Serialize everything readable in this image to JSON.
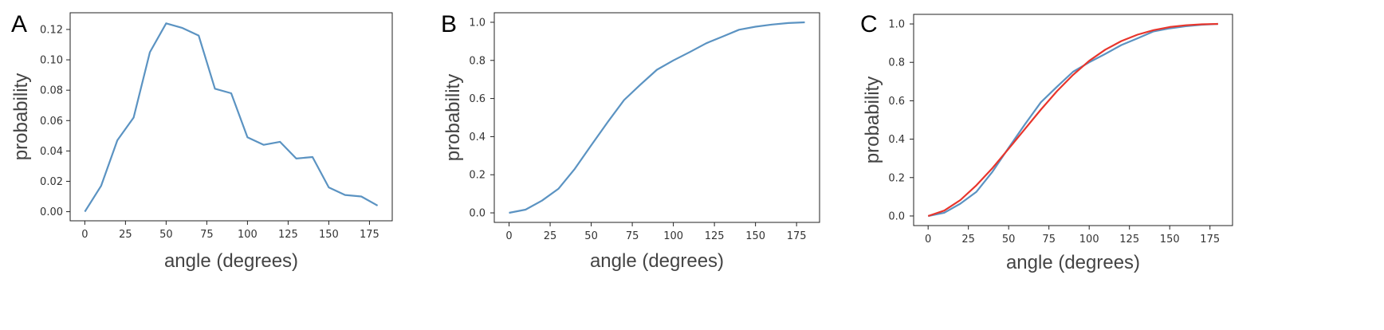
{
  "chart_data": [
    {
      "type": "line",
      "panel_label": "A",
      "xlabel": "angle (degrees)",
      "ylabel": "probability",
      "xlim": [
        -9,
        189
      ],
      "ylim": [
        -0.006,
        0.131
      ],
      "xticks": [
        0,
        25,
        50,
        75,
        100,
        125,
        150,
        175
      ],
      "yticks": [
        0.0,
        0.02,
        0.04,
        0.06,
        0.08,
        0.1,
        0.12
      ],
      "ytick_labels": [
        "0.00",
        "0.02",
        "0.04",
        "0.06",
        "0.08",
        "0.10",
        "0.12"
      ],
      "x": [
        0,
        10,
        20,
        30,
        40,
        50,
        60,
        70,
        80,
        90,
        100,
        110,
        120,
        130,
        140,
        150,
        160,
        170,
        180
      ],
      "series": [
        {
          "color": "#5b93c2",
          "values": [
            0.0,
            0.017,
            0.047,
            0.062,
            0.105,
            0.124,
            0.121,
            0.116,
            0.081,
            0.078,
            0.049,
            0.044,
            0.046,
            0.035,
            0.036,
            0.016,
            0.011,
            0.01,
            0.004
          ]
        }
      ]
    },
    {
      "type": "line",
      "panel_label": "B",
      "xlabel": "angle (degrees)",
      "ylabel": "probability",
      "xlim": [
        -9,
        189
      ],
      "ylim": [
        -0.05,
        1.05
      ],
      "xticks": [
        0,
        25,
        50,
        75,
        100,
        125,
        150,
        175
      ],
      "yticks": [
        0.0,
        0.2,
        0.4,
        0.6,
        0.8,
        1.0
      ],
      "ytick_labels": [
        "0.0",
        "0.2",
        "0.4",
        "0.6",
        "0.8",
        "1.0"
      ],
      "x": [
        0,
        10,
        20,
        30,
        40,
        50,
        60,
        70,
        80,
        90,
        100,
        110,
        120,
        130,
        140,
        150,
        160,
        170,
        180
      ],
      "series": [
        {
          "color": "#5b93c2",
          "values": [
            0.0,
            0.017,
            0.064,
            0.126,
            0.231,
            0.355,
            0.476,
            0.592,
            0.673,
            0.751,
            0.8,
            0.844,
            0.89,
            0.925,
            0.961,
            0.977,
            0.988,
            0.996,
            1.0
          ]
        }
      ]
    },
    {
      "type": "line",
      "panel_label": "C",
      "xlabel": "angle (degrees)",
      "ylabel": "probability",
      "xlim": [
        -9,
        189
      ],
      "ylim": [
        -0.05,
        1.05
      ],
      "xticks": [
        0,
        25,
        50,
        75,
        100,
        125,
        150,
        175
      ],
      "yticks": [
        0.0,
        0.2,
        0.4,
        0.6,
        0.8,
        1.0
      ],
      "ytick_labels": [
        "0.0",
        "0.2",
        "0.4",
        "0.6",
        "0.8",
        "1.0"
      ],
      "x": [
        0,
        10,
        20,
        30,
        40,
        50,
        60,
        70,
        80,
        90,
        100,
        110,
        120,
        130,
        140,
        150,
        160,
        170,
        180
      ],
      "series": [
        {
          "color": "#5b93c2",
          "values": [
            0.0,
            0.017,
            0.064,
            0.126,
            0.231,
            0.355,
            0.476,
            0.592,
            0.673,
            0.751,
            0.8,
            0.844,
            0.89,
            0.925,
            0.961,
            0.977,
            0.988,
            0.996,
            1.0
          ]
        },
        {
          "color": "#e8352c",
          "values": [
            0.0,
            0.028,
            0.083,
            0.16,
            0.25,
            0.35,
            0.452,
            0.554,
            0.65,
            0.735,
            0.808,
            0.866,
            0.911,
            0.944,
            0.968,
            0.984,
            0.993,
            0.998,
            1.0
          ]
        }
      ]
    }
  ]
}
